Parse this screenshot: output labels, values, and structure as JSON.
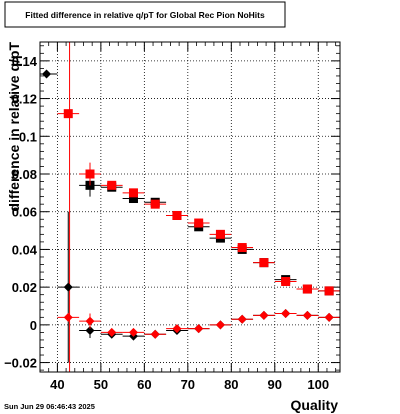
{
  "chart_data": {
    "type": "scatter",
    "title": "Fitted difference in relative q/pT for Global Rec Pion NoHits",
    "xlabel": "Quality",
    "ylabel": "difference in relative q/pT",
    "timestamp": "Sun Jun 29 06:46:43 2025",
    "xlim": [
      36,
      105
    ],
    "ylim": [
      -0.025,
      0.15
    ],
    "grid": true,
    "legend": "none",
    "x_ticks": [
      40,
      50,
      60,
      70,
      80,
      90,
      100
    ],
    "y_ticks": [
      -0.02,
      0,
      0.02,
      0.04,
      0.06,
      0.08,
      0.1,
      0.12,
      0.14
    ],
    "x_tick_labels": [
      "40",
      "50",
      "60",
      "70",
      "80",
      "90",
      "100"
    ],
    "y_tick_labels": [
      "−0.02",
      "0",
      "0.02",
      "0.04",
      "0.06",
      "0.08",
      "0.1",
      "0.12",
      "0.14"
    ],
    "vertical_line": {
      "x": 42.8,
      "color": "#ff0000"
    },
    "bin_half_width": 2.5,
    "series": [
      {
        "marker": "square",
        "color": "#000000",
        "x": [
          42.5,
          47.5,
          52.5,
          57.5,
          62.5,
          67.5,
          72.5,
          77.5,
          82.5,
          87.5,
          92.5,
          97.5,
          102.5
        ],
        "y": [
          null,
          0.074,
          0.073,
          0.067,
          0.065,
          0.058,
          0.052,
          0.046,
          0.04,
          0.033,
          0.024,
          0.019,
          0.018
        ],
        "yerr": [
          null,
          0.006,
          0.002,
          0.002,
          0.001,
          0.001,
          0.001,
          0.001,
          0.001,
          0.001,
          0.001,
          0.001,
          0.001
        ]
      },
      {
        "marker": "square",
        "color": "#ff0000",
        "x": [
          42.5,
          47.5,
          52.5,
          57.5,
          62.5,
          67.5,
          72.5,
          77.5,
          82.5,
          87.5,
          92.5,
          97.5,
          102.5
        ],
        "y": [
          0.112,
          0.08,
          0.074,
          0.07,
          0.064,
          0.058,
          0.054,
          0.048,
          0.041,
          0.033,
          0.023,
          0.019,
          0.018
        ],
        "yerr": [
          0.002,
          0.006,
          0.002,
          0.002,
          0.001,
          0.001,
          0.001,
          0.001,
          0.001,
          0.001,
          0.001,
          0.001,
          0.001
        ]
      },
      {
        "marker": "diamond",
        "color": "#000000",
        "x": [
          37.5,
          42.5,
          47.5,
          52.5,
          57.5,
          62.5,
          67.5,
          72.5,
          77.5,
          82.5,
          87.5,
          92.5,
          97.5,
          102.5
        ],
        "y": [
          0.133,
          0.02,
          -0.003,
          -0.005,
          -0.006,
          -0.005,
          -0.003,
          -0.002,
          0.0,
          0.003,
          0.005,
          0.006,
          0.005,
          0.004
        ],
        "yerr": [
          0.001,
          0.04,
          0.004,
          0.002,
          0.002,
          0.001,
          0.001,
          0.001,
          0.001,
          0.001,
          0.001,
          0.001,
          0.001,
          0.001
        ]
      },
      {
        "marker": "diamond",
        "color": "#ff0000",
        "x": [
          42.5,
          47.5,
          52.5,
          57.5,
          62.5,
          67.5,
          72.5,
          77.5,
          82.5,
          87.5,
          92.5,
          97.5,
          102.5
        ],
        "y": [
          0.004,
          0.002,
          -0.004,
          -0.004,
          -0.005,
          -0.002,
          -0.002,
          0.0,
          0.003,
          0.005,
          0.006,
          0.005,
          0.004
        ],
        "yerr": [
          0.002,
          0.004,
          0.002,
          0.002,
          0.001,
          0.001,
          0.001,
          0.001,
          0.001,
          0.001,
          0.001,
          0.001,
          0.001
        ]
      }
    ]
  }
}
